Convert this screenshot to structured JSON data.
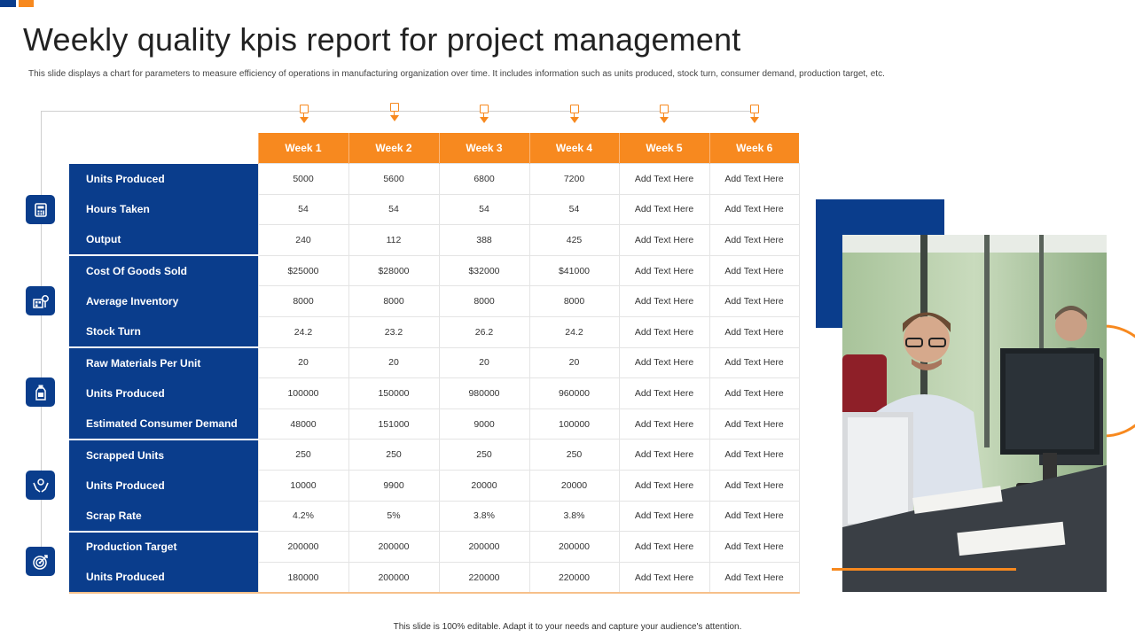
{
  "title": "Weekly quality kpis report for project management",
  "subtitle": "This slide displays a chart for parameters to measure efficiency of operations in manufacturing organization over time.  It includes information such as units produced, stock turn, consumer demand,  production target, etc.",
  "footer": "This slide is 100% editable.  Adapt it to your needs and capture your audience's attention.",
  "colors": {
    "accent": "#f7891f",
    "brand": "#0a3d8c"
  },
  "icons": [
    "calculator-icon",
    "inventory-icon",
    "bottle-icon",
    "hands-icon",
    "target-icon"
  ],
  "table": {
    "weeks": [
      "Week 1",
      "Week 2",
      "Week 3",
      "Week 4",
      "Week 5",
      "Week 6"
    ],
    "rows": [
      {
        "label": "Units Produced",
        "values": [
          "5000",
          "5600",
          "6800",
          "7200",
          "Add Text Here",
          "Add Text Here"
        ]
      },
      {
        "label": "Hours Taken",
        "values": [
          "54",
          "54",
          "54",
          "54",
          "Add Text Here",
          "Add Text Here"
        ]
      },
      {
        "label": "Output",
        "values": [
          "240",
          "112",
          "388",
          "425",
          "Add Text Here",
          "Add Text Here"
        ]
      },
      {
        "label": "Cost Of Goods  Sold",
        "values": [
          "$25000",
          "$28000",
          "$32000",
          "$41000",
          "Add Text Here",
          "Add Text Here"
        ]
      },
      {
        "label": "Average Inventory",
        "values": [
          "8000",
          "8000",
          "8000",
          "8000",
          "Add Text Here",
          "Add Text Here"
        ]
      },
      {
        "label": "Stock Turn",
        "values": [
          "24.2",
          "23.2",
          "26.2",
          "24.2",
          "Add Text Here",
          "Add Text Here"
        ]
      },
      {
        "label": "Raw Materials Per Unit",
        "values": [
          "20",
          "20",
          "20",
          "20",
          "Add Text Here",
          "Add Text Here"
        ]
      },
      {
        "label": "Units Produced",
        "values": [
          "100000",
          "150000",
          "980000",
          "960000",
          "Add Text Here",
          "Add Text Here"
        ]
      },
      {
        "label": "Estimated Consumer Demand",
        "values": [
          "48000",
          "151000",
          "9000",
          "100000",
          "Add Text Here",
          "Add Text Here"
        ]
      },
      {
        "label": "Scrapped Units",
        "values": [
          "250",
          "250",
          "250",
          "250",
          "Add Text Here",
          "Add Text Here"
        ]
      },
      {
        "label": "Units Produced",
        "values": [
          "10000",
          "9900",
          "20000",
          "20000",
          "Add Text Here",
          "Add Text Here"
        ]
      },
      {
        "label": "Scrap Rate",
        "values": [
          "4.2%",
          "5%",
          "3.8%",
          "3.8%",
          "Add Text Here",
          "Add Text Here"
        ]
      },
      {
        "label": "Production Target",
        "values": [
          "200000",
          "200000",
          "200000",
          "200000",
          "Add Text Here",
          "Add Text Here"
        ]
      },
      {
        "label": "Units Produced",
        "values": [
          "180000",
          "200000",
          "220000",
          "220000",
          "Add Text Here",
          "Add Text Here"
        ]
      }
    ]
  }
}
